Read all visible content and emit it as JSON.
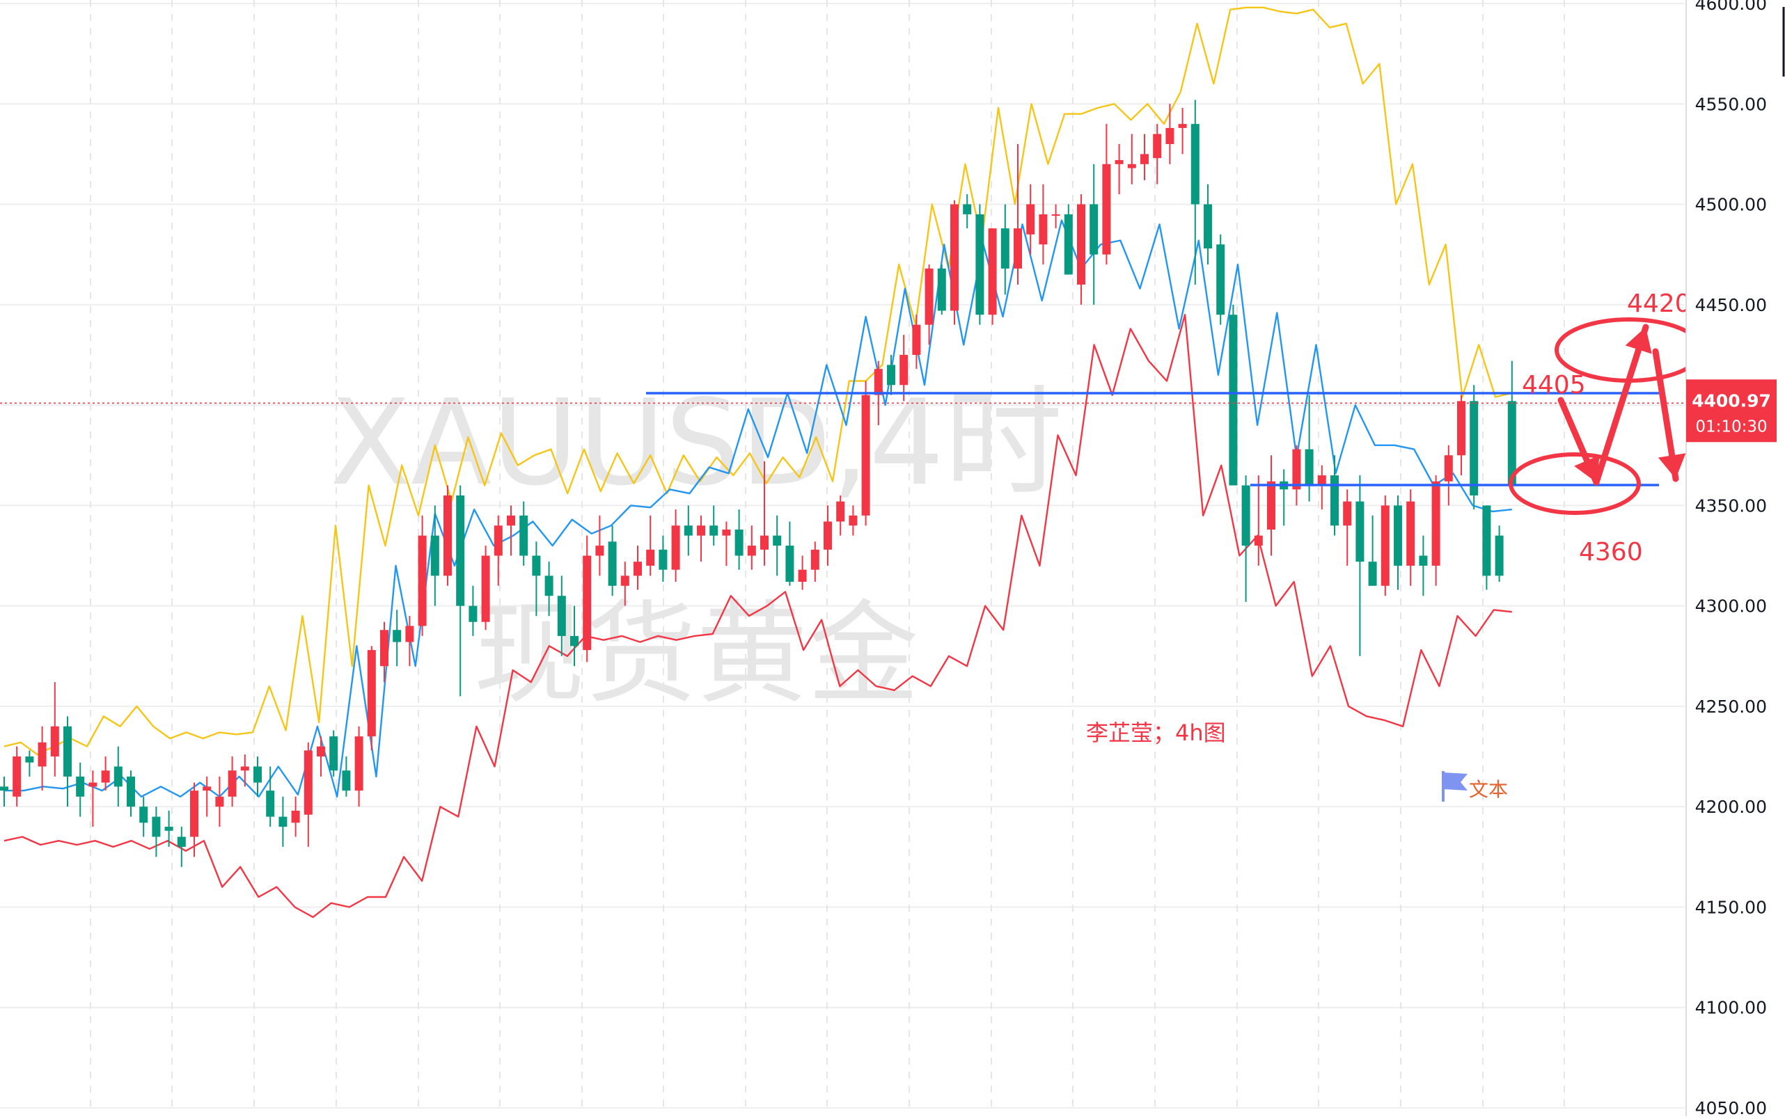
{
  "chart_data": {
    "type": "candlestick",
    "symbol_watermark": "XAUUSD,4时",
    "name_watermark": "现货黄金",
    "y_axis": {
      "min": 4050,
      "max": 4600,
      "ticks": [
        "4050.00",
        "4100.00",
        "4150.00",
        "4200.00",
        "4250.00",
        "4300.00",
        "4350.00",
        "4400.00",
        "4450.00",
        "4500.00",
        "4550.00",
        "4600.00"
      ]
    },
    "price_label": "4400.97",
    "countdown_label": "01:10:30",
    "current_price": 4400.97,
    "candles": [
      [
        4210,
        4215,
        4200,
        4208
      ],
      [
        4205,
        4230,
        4200,
        4225
      ],
      [
        4225,
        4228,
        4215,
        4222
      ],
      [
        4220,
        4240,
        4208,
        4232
      ],
      [
        4225,
        4262,
        4215,
        4240
      ],
      [
        4240,
        4245,
        4200,
        4215
      ],
      [
        4215,
        4222,
        4195,
        4205
      ],
      [
        4210,
        4218,
        4190,
        4212
      ],
      [
        4212,
        4225,
        4208,
        4218
      ],
      [
        4220,
        4230,
        4200,
        4210
      ],
      [
        4215,
        4218,
        4195,
        4200
      ],
      [
        4200,
        4205,
        4185,
        4192
      ],
      [
        4195,
        4200,
        4175,
        4185
      ],
      [
        4190,
        4198,
        4180,
        4188
      ],
      [
        4185,
        4190,
        4170,
        4180
      ],
      [
        4185,
        4212,
        4175,
        4208
      ],
      [
        4208,
        4215,
        4195,
        4210
      ],
      [
        4200,
        4215,
        4190,
        4205
      ],
      [
        4205,
        4225,
        4200,
        4218
      ],
      [
        4218,
        4226,
        4210,
        4220
      ],
      [
        4220,
        4225,
        4205,
        4212
      ],
      [
        4208,
        4220,
        4190,
        4195
      ],
      [
        4195,
        4205,
        4180,
        4190
      ],
      [
        4192,
        4205,
        4185,
        4198
      ],
      [
        4196,
        4232,
        4180,
        4228
      ],
      [
        4225,
        4235,
        4215,
        4230
      ],
      [
        4235,
        4238,
        4215,
        4218
      ],
      [
        4218,
        4225,
        4205,
        4208
      ],
      [
        4208,
        4240,
        4200,
        4235
      ],
      [
        4235,
        4280,
        4228,
        4278
      ],
      [
        4270,
        4292,
        4262,
        4288
      ],
      [
        4288,
        4298,
        4270,
        4282
      ],
      [
        4282,
        4295,
        4270,
        4290
      ],
      [
        4290,
        4345,
        4285,
        4335
      ],
      [
        4335,
        4350,
        4300,
        4315
      ],
      [
        4315,
        4360,
        4310,
        4355
      ],
      [
        4355,
        4360,
        4255,
        4300
      ],
      [
        4300,
        4310,
        4285,
        4292
      ],
      [
        4292,
        4330,
        4288,
        4325
      ],
      [
        4325,
        4345,
        4310,
        4340
      ],
      [
        4340,
        4350,
        4325,
        4345
      ],
      [
        4345,
        4352,
        4320,
        4325
      ],
      [
        4325,
        4332,
        4295,
        4315
      ],
      [
        4315,
        4322,
        4295,
        4305
      ],
      [
        4305,
        4315,
        4275,
        4285
      ],
      [
        4285,
        4300,
        4270,
        4280
      ],
      [
        4278,
        4335,
        4272,
        4325
      ],
      [
        4325,
        4345,
        4315,
        4330
      ],
      [
        4332,
        4340,
        4305,
        4310
      ],
      [
        4310,
        4322,
        4300,
        4315
      ],
      [
        4315,
        4330,
        4308,
        4322
      ],
      [
        4320,
        4345,
        4315,
        4328
      ],
      [
        4328,
        4335,
        4312,
        4318
      ],
      [
        4318,
        4348,
        4312,
        4340
      ],
      [
        4340,
        4350,
        4325,
        4335
      ],
      [
        4335,
        4345,
        4322,
        4340
      ],
      [
        4340,
        4350,
        4330,
        4335
      ],
      [
        4335,
        4342,
        4320,
        4338
      ],
      [
        4338,
        4348,
        4318,
        4325
      ],
      [
        4325,
        4340,
        4318,
        4330
      ],
      [
        4328,
        4372,
        4320,
        4335
      ],
      [
        4335,
        4345,
        4315,
        4330
      ],
      [
        4330,
        4342,
        4310,
        4312
      ],
      [
        4312,
        4325,
        4308,
        4318
      ],
      [
        4318,
        4332,
        4312,
        4328
      ],
      [
        4328,
        4350,
        4320,
        4342
      ],
      [
        4342,
        4355,
        4335,
        4352
      ],
      [
        4340,
        4350,
        4335,
        4345
      ],
      [
        4345,
        4412,
        4340,
        4405
      ],
      [
        4405,
        4422,
        4390,
        4418
      ],
      [
        4420,
        4425,
        4405,
        4410
      ],
      [
        4410,
        4435,
        4402,
        4425
      ],
      [
        4425,
        4445,
        4418,
        4440
      ],
      [
        4440,
        4470,
        4430,
        4468
      ],
      [
        4468,
        4470,
        4445,
        4447
      ],
      [
        4447,
        4502,
        4440,
        4500
      ],
      [
        4500,
        4505,
        4488,
        4495
      ],
      [
        4495,
        4500,
        4440,
        4445
      ],
      [
        4445,
        4485,
        4440,
        4488
      ],
      [
        4488,
        4500,
        4455,
        4468
      ],
      [
        4468,
        4530,
        4460,
        4488
      ],
      [
        4485,
        4510,
        4475,
        4500
      ],
      [
        4480,
        4510,
        4470,
        4495
      ],
      [
        4495,
        4500,
        4488,
        4495
      ],
      [
        4495,
        4500,
        4470,
        4465
      ],
      [
        4460,
        4505,
        4450,
        4500
      ],
      [
        4500,
        4520,
        4450,
        4475
      ],
      [
        4475,
        4540,
        4470,
        4520
      ],
      [
        4520,
        4530,
        4505,
        4522
      ],
      [
        4518,
        4535,
        4510,
        4520
      ],
      [
        4520,
        4535,
        4512,
        4525
      ],
      [
        4523,
        4540,
        4510,
        4535
      ],
      [
        4530,
        4550,
        4520,
        4538
      ],
      [
        4538,
        4548,
        4525,
        4540
      ],
      [
        4540,
        4552,
        4460,
        4500
      ],
      [
        4500,
        4510,
        4470,
        4478
      ],
      [
        4480,
        4485,
        4440,
        4445
      ],
      [
        4445,
        4450,
        4360,
        4360
      ],
      [
        4360,
        4365,
        4302,
        4330
      ],
      [
        4330,
        4365,
        4320,
        4335
      ],
      [
        4338,
        4375,
        4325,
        4362
      ],
      [
        4362,
        4368,
        4340,
        4358
      ],
      [
        4358,
        4380,
        4350,
        4378
      ],
      [
        4378,
        4405,
        4352,
        4360
      ],
      [
        4360,
        4370,
        4348,
        4365
      ],
      [
        4365,
        4375,
        4335,
        4340
      ],
      [
        4340,
        4358,
        4320,
        4352
      ],
      [
        4352,
        4365,
        4275,
        4322
      ],
      [
        4322,
        4345,
        4310,
        4310
      ],
      [
        4310,
        4355,
        4305,
        4350
      ],
      [
        4350,
        4355,
        4308,
        4320
      ],
      [
        4320,
        4358,
        4310,
        4352
      ],
      [
        4325,
        4335,
        4305,
        4320
      ],
      [
        4320,
        4365,
        4310,
        4362
      ],
      [
        4362,
        4380,
        4350,
        4375
      ],
      [
        4375,
        4405,
        4365,
        4402
      ],
      [
        4402,
        4410,
        4348,
        4355
      ],
      [
        4350,
        4350,
        4308,
        4315
      ],
      [
        4335,
        4340,
        4312,
        4315
      ],
      [
        4402,
        4422,
        4358,
        4360
      ]
    ],
    "moving_average": [
      [
        4208,
        4208
      ],
      [
        4210,
        4209
      ],
      [
        4212,
        4208
      ],
      [
        4215,
        4205
      ],
      [
        4210,
        4205
      ],
      [
        4212,
        4205
      ],
      [
        4215,
        4205
      ],
      [
        4220,
        4206
      ],
      [
        4240,
        4205
      ],
      [
        4280,
        4215
      ],
      [
        4320,
        4270
      ],
      [
        4346,
        4320
      ],
      [
        4348,
        4330
      ],
      [
        4335,
        4342
      ],
      [
        4330,
        4343
      ],
      [
        4336,
        4340
      ],
      [
        4350,
        4349
      ],
      [
        4358,
        4356
      ],
      [
        4369,
        4366
      ],
      [
        4398,
        4374
      ],
      [
        4406,
        4376
      ],
      [
        4420,
        4390
      ],
      [
        4444,
        4400
      ],
      [
        4458,
        4410
      ],
      [
        4480,
        4430
      ],
      [
        4480,
        4444
      ],
      [
        4490,
        4452
      ],
      [
        4492,
        4468
      ],
      [
        4480,
        4482
      ],
      [
        4458,
        4490
      ],
      [
        4438,
        4482
      ],
      [
        4415,
        4470
      ],
      [
        4390,
        4446
      ],
      [
        4374,
        4430
      ],
      [
        4366,
        4400
      ],
      [
        4380,
        4380
      ],
      [
        4378,
        4360
      ],
      [
        4366,
        4350
      ],
      [
        4347,
        4348
      ]
    ],
    "upper_band": [
      [
        4230,
        4232
      ],
      [
        4226,
        4230
      ],
      [
        4234,
        4230
      ],
      [
        4245,
        4240
      ],
      [
        4250,
        4240
      ],
      [
        4234,
        4237
      ],
      [
        4234,
        4237
      ],
      [
        4236,
        4237
      ],
      [
        4260,
        4238
      ],
      [
        4295,
        4242
      ],
      [
        4340,
        4270
      ],
      [
        4360,
        4330
      ],
      [
        4370,
        4345
      ],
      [
        4380,
        4352
      ],
      [
        4384,
        4360
      ],
      [
        4386,
        4370
      ],
      [
        4375,
        4378
      ],
      [
        4356,
        4378
      ],
      [
        4357,
        4376
      ],
      [
        4361,
        4375
      ],
      [
        4356,
        4375
      ],
      [
        4362,
        4374
      ],
      [
        4365,
        4376
      ],
      [
        4361,
        4374
      ],
      [
        4364,
        4384
      ],
      [
        4362,
        4412
      ],
      [
        4412,
        4420
      ],
      [
        4470,
        4440
      ],
      [
        4500,
        4468
      ],
      [
        4520,
        4482
      ],
      [
        4548,
        4500
      ],
      [
        4550,
        4520
      ],
      [
        4545,
        4545
      ],
      [
        4548,
        4550
      ],
      [
        4542,
        4550
      ],
      [
        4540,
        4556
      ],
      [
        4590,
        4560
      ],
      [
        4597,
        4598
      ],
      [
        4598,
        4596
      ],
      [
        4595,
        4597
      ],
      [
        4588,
        4590
      ],
      [
        4560,
        4570
      ],
      [
        4500,
        4520
      ],
      [
        4460,
        4480
      ],
      [
        4404,
        4430
      ],
      [
        4404,
        4406
      ]
    ],
    "lower_band": [
      [
        4183,
        4185
      ],
      [
        4181,
        4183
      ],
      [
        4181,
        4183
      ],
      [
        4180,
        4183
      ],
      [
        4179,
        4183
      ],
      [
        4178,
        4183
      ],
      [
        4160,
        4170
      ],
      [
        4155,
        4160
      ],
      [
        4150,
        4145
      ],
      [
        4152,
        4150
      ],
      [
        4155,
        4155
      ],
      [
        4175,
        4163
      ],
      [
        4200,
        4195
      ],
      [
        4240,
        4220
      ],
      [
        4268,
        4262
      ],
      [
        4280,
        4275
      ],
      [
        4285,
        4283
      ],
      [
        4285,
        4282
      ],
      [
        4285,
        4283
      ],
      [
        4285,
        4286
      ],
      [
        4305,
        4295
      ],
      [
        4300,
        4307
      ],
      [
        4278,
        4293
      ],
      [
        4260,
        4268
      ],
      [
        4260,
        4258
      ],
      [
        4265,
        4260
      ],
      [
        4275,
        4270
      ],
      [
        4300,
        4288
      ],
      [
        4345,
        4320
      ],
      [
        4385,
        4365
      ],
      [
        4430,
        4405
      ],
      [
        4438,
        4422
      ],
      [
        4412,
        4445
      ],
      [
        4345,
        4370
      ],
      [
        4325,
        4335
      ],
      [
        4300,
        4312
      ],
      [
        4265,
        4280
      ],
      [
        4250,
        4245
      ],
      [
        4243,
        4240
      ],
      [
        4278,
        4260
      ],
      [
        4295,
        4285
      ],
      [
        4298,
        4297
      ]
    ],
    "annotations": {
      "label_4420": "4420",
      "label_4405": "4405",
      "label_4360": "4360",
      "author_note": "李芷莹；4h图",
      "flag_text": "文本"
    },
    "colors": {
      "up": "#f23645",
      "down": "#089981",
      "ma": "#2196f3",
      "upper_band": "#f5c518",
      "lower_band": "#f23645",
      "level_line": "#2962ff",
      "annotation": "#f23645",
      "price_box": "#f23645",
      "watermark": "#e4e4e4"
    }
  }
}
